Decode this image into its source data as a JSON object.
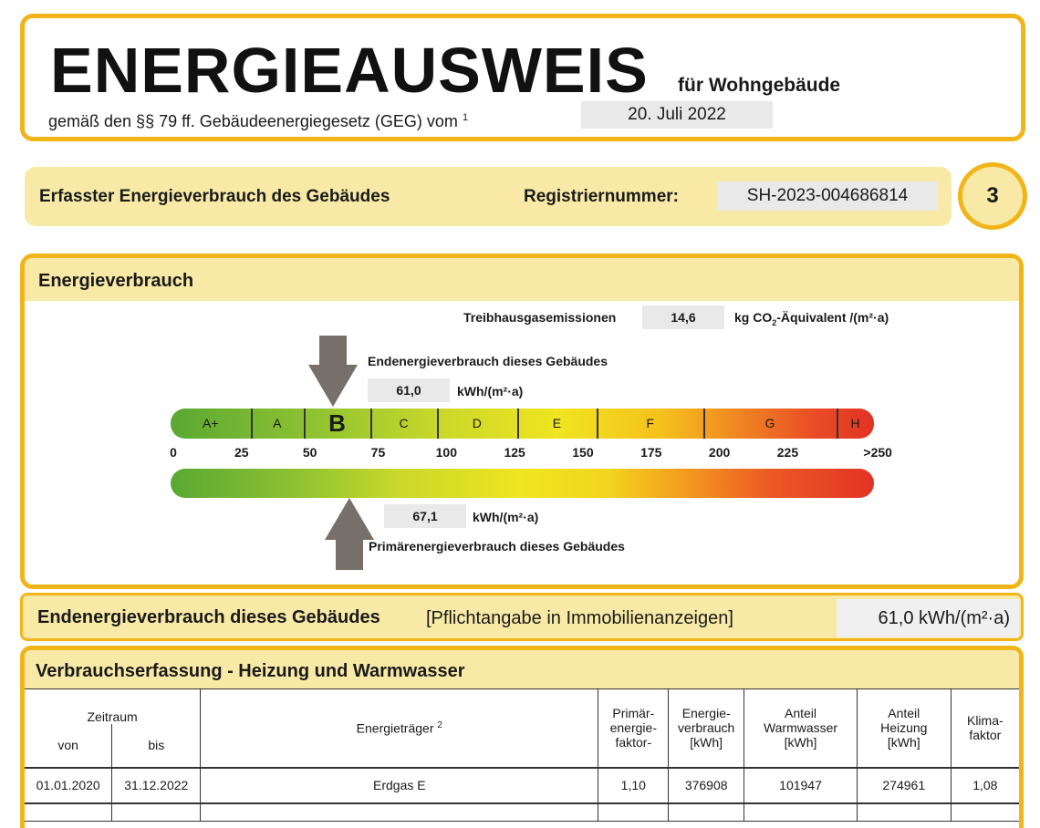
{
  "header": {
    "title": "ENERGIEAUSWEIS",
    "for": "für Wohngebäude",
    "subtitle": "gemäß den §§ 79 ff. Gebäudeenergiegesetz (GEG) vom",
    "footnote": "1",
    "date": "20. Juli 2022"
  },
  "row2": {
    "label": "Erfasster Energieverbrauch des Gebäudes",
    "reg_label": "Registriernummer:",
    "reg_value": "SH-2023-004686814",
    "page": "3"
  },
  "energy": {
    "title": "Energieverbrauch",
    "ghg_label": "Treibhausgasemissionen",
    "ghg_value": "14,6",
    "ghg_unit_pre": "kg CO",
    "ghg_unit_sub": "2",
    "ghg_unit_post": "-Äquivalent /(m²·a)",
    "end_label": "Endenergieverbrauch dieses Gebäudes",
    "end_value": "61,0",
    "end_value_num": 61.0,
    "unit": "kWh/(m²·a)",
    "primary_label": "Primärenergieverbrauch dieses Gebäudes",
    "primary_value": "67,1",
    "primary_value_num": 67.1,
    "rating": "B",
    "scale_max": 250,
    "classes": [
      {
        "label": "A+",
        "from": 0,
        "to": 30
      },
      {
        "label": "A",
        "from": 30,
        "to": 50
      },
      {
        "label": "B",
        "from": 50,
        "to": 75
      },
      {
        "label": "C",
        "from": 75,
        "to": 100
      },
      {
        "label": "D",
        "from": 100,
        "to": 130
      },
      {
        "label": "E",
        "from": 130,
        "to": 160
      },
      {
        "label": "F",
        "from": 160,
        "to": 200
      },
      {
        "label": "G",
        "from": 200,
        "to": 250
      },
      {
        "label": "H",
        "from": 250,
        "to": 265
      }
    ],
    "ticks": [
      {
        "v": 0,
        "t": "0"
      },
      {
        "v": 25,
        "t": "25"
      },
      {
        "v": 50,
        "t": "50"
      },
      {
        "v": 75,
        "t": "75"
      },
      {
        "v": 100,
        "t": "100"
      },
      {
        "v": 125,
        "t": "125"
      },
      {
        "v": 150,
        "t": "150"
      },
      {
        "v": 175,
        "t": "175"
      },
      {
        "v": 200,
        "t": "200"
      },
      {
        "v": 225,
        "t": "225"
      },
      {
        "v": 258,
        "t": ">250"
      }
    ]
  },
  "summary": {
    "label": "Endenergieverbrauch dieses Gebäudes",
    "note": "[Pflichtangabe in Immobilienanzeigen]",
    "value": "61,0 kWh/(m²·a)"
  },
  "table": {
    "title": "Verbrauchserfassung - Heizung und Warmwasser",
    "headers": {
      "period": "Zeitraum",
      "from": "von",
      "to": "bis",
      "carrier": "Energieträger",
      "carrier_fn": "2",
      "pef": "Primär-\nenergie-\nfaktor-",
      "consumption": "Energie-\nverbrauch\n[kWh]",
      "ww": "Anteil\nWarmwasser\n[kWh]",
      "heat": "Anteil\nHeizung\n[kWh]",
      "climate": "Klima-\nfaktor"
    },
    "rows": [
      {
        "from": "01.01.2020",
        "to": "31.12.2022",
        "carrier": "Erdgas E",
        "pef": "1,10",
        "consumption": "376908",
        "ww": "101947",
        "heat": "274961",
        "climate": "1,08"
      }
    ]
  }
}
